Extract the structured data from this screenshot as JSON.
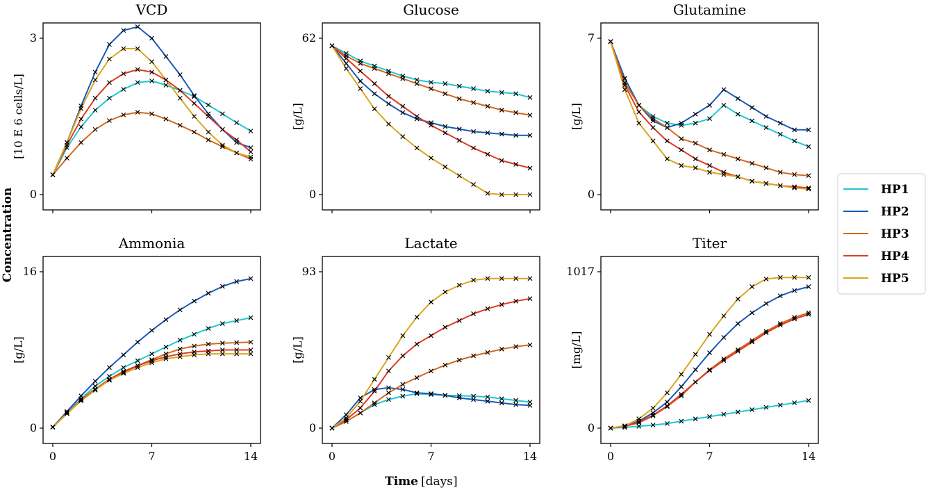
{
  "figure": {
    "shared_ylabel": "Concentration",
    "shared_xlabel_bold": "Time",
    "shared_xlabel_unit": "[days]"
  },
  "legend": {
    "placement": "right",
    "entries": [
      {
        "name": "HP1",
        "color": "#1ec8d2"
      },
      {
        "name": "HP2",
        "color": "#1a5ab8"
      },
      {
        "name": "HP3",
        "color": "#d2691e"
      },
      {
        "name": "HP4",
        "color": "#e03a24"
      },
      {
        "name": "HP5",
        "color": "#d9a61e"
      }
    ]
  },
  "chart_data": [
    {
      "type": "line",
      "title": "VCD",
      "ylabel": "[10 E 6 cells/L]",
      "xlim": [
        0,
        14
      ],
      "ylim": [
        0,
        3
      ],
      "xticks": [
        0,
        7,
        14
      ],
      "yticks": [
        0,
        3
      ],
      "marker": "x",
      "x": [
        0,
        1,
        2,
        3,
        4,
        5,
        6,
        7,
        8,
        9,
        10,
        11,
        12,
        13,
        14
      ],
      "series": [
        {
          "name": "HP1",
          "values": [
            0.38,
            0.9,
            1.3,
            1.62,
            1.85,
            2.02,
            2.15,
            2.18,
            2.1,
            2.0,
            1.88,
            1.72,
            1.55,
            1.38,
            1.22
          ]
        },
        {
          "name": "HP2",
          "values": [
            0.38,
            1.0,
            1.7,
            2.35,
            2.88,
            3.15,
            3.22,
            3.0,
            2.65,
            2.3,
            1.9,
            1.55,
            1.25,
            1.0,
            0.9
          ]
        },
        {
          "name": "HP3",
          "values": [
            0.38,
            0.7,
            1.0,
            1.25,
            1.42,
            1.53,
            1.58,
            1.55,
            1.45,
            1.33,
            1.2,
            1.05,
            0.92,
            0.8,
            0.68
          ]
        },
        {
          "name": "HP4",
          "values": [
            0.38,
            0.95,
            1.45,
            1.85,
            2.15,
            2.32,
            2.4,
            2.35,
            2.2,
            2.0,
            1.75,
            1.5,
            1.25,
            1.05,
            0.82
          ]
        },
        {
          "name": "HP5",
          "values": [
            0.38,
            1.0,
            1.65,
            2.2,
            2.6,
            2.8,
            2.8,
            2.55,
            2.2,
            1.85,
            1.5,
            1.2,
            0.95,
            0.8,
            0.72
          ]
        }
      ]
    },
    {
      "type": "line",
      "title": "Glucose",
      "ylabel": "[g/L]",
      "xlim": [
        0,
        14
      ],
      "ylim": [
        0,
        62
      ],
      "xticks": [
        0,
        7,
        14
      ],
      "yticks": [
        0,
        62
      ],
      "marker": "x",
      "x": [
        0,
        1,
        2,
        3,
        4,
        5,
        6,
        7,
        8,
        9,
        10,
        11,
        12,
        13,
        14
      ],
      "series": [
        {
          "name": "HP1",
          "values": [
            59,
            56,
            53,
            51,
            49,
            47,
            45.5,
            44.5,
            44,
            43,
            42,
            41,
            40.5,
            40,
            38.5
          ]
        },
        {
          "name": "HP2",
          "values": [
            59,
            52,
            45,
            40,
            36,
            32.5,
            30,
            28.5,
            27,
            26,
            25,
            24.5,
            24,
            23.5,
            23.5
          ]
        },
        {
          "name": "HP3",
          "values": [
            59,
            55,
            52,
            50,
            48,
            46,
            44,
            42,
            40,
            38,
            36.5,
            35,
            33.5,
            32.5,
            31.5
          ]
        },
        {
          "name": "HP4",
          "values": [
            59,
            54,
            49,
            44,
            39,
            35,
            31,
            27.5,
            24.5,
            21.5,
            18.5,
            16,
            13.5,
            12,
            10.5
          ]
        },
        {
          "name": "HP5",
          "values": [
            59,
            50,
            42,
            34,
            28,
            23,
            18.5,
            14.5,
            11,
            7.5,
            4,
            0.5,
            0,
            0,
            0
          ]
        }
      ]
    },
    {
      "type": "line",
      "title": "Glutamine",
      "ylabel": "[g/L]",
      "xlim": [
        0,
        14
      ],
      "ylim": [
        0,
        7
      ],
      "xticks": [
        0,
        7,
        14
      ],
      "yticks": [
        0,
        7
      ],
      "marker": "x",
      "x": [
        0,
        1,
        2,
        3,
        4,
        5,
        6,
        7,
        8,
        9,
        10,
        11,
        12,
        13,
        14
      ],
      "series": [
        {
          "name": "HP1",
          "values": [
            6.85,
            5.2,
            4.0,
            3.5,
            3.2,
            3.1,
            3.2,
            3.4,
            4.0,
            3.6,
            3.3,
            3.0,
            2.7,
            2.4,
            2.15
          ]
        },
        {
          "name": "HP2",
          "values": [
            6.85,
            5.2,
            4.0,
            3.3,
            3.0,
            3.2,
            3.6,
            4.0,
            4.7,
            4.3,
            3.9,
            3.5,
            3.2,
            2.9,
            2.9
          ]
        },
        {
          "name": "HP3",
          "values": [
            6.85,
            5.0,
            4.0,
            3.4,
            3.0,
            2.5,
            2.3,
            2.0,
            1.8,
            1.6,
            1.4,
            1.2,
            1.0,
            0.9,
            0.85
          ]
        },
        {
          "name": "HP4",
          "values": [
            6.85,
            4.9,
            3.7,
            3.0,
            2.4,
            2.0,
            1.6,
            1.3,
            1.0,
            0.8,
            0.6,
            0.5,
            0.4,
            0.35,
            0.3
          ]
        },
        {
          "name": "HP5",
          "values": [
            6.85,
            4.7,
            3.2,
            2.4,
            1.6,
            1.3,
            1.2,
            1.0,
            0.9,
            0.8,
            0.6,
            0.5,
            0.4,
            0.3,
            0.25
          ]
        }
      ]
    },
    {
      "type": "line",
      "title": "Ammonia",
      "ylabel": "[g/L]",
      "xlim": [
        0,
        14
      ],
      "ylim": [
        0,
        16
      ],
      "xticks": [
        0,
        7,
        14
      ],
      "yticks": [
        0,
        16
      ],
      "marker": "x",
      "x": [
        0,
        1,
        2,
        3,
        4,
        5,
        6,
        7,
        8,
        9,
        10,
        11,
        12,
        13,
        14
      ],
      "series": [
        {
          "name": "HP1",
          "values": [
            0.1,
            1.6,
            3.0,
            4.3,
            5.3,
            6.2,
            6.9,
            7.6,
            8.3,
            9.0,
            9.6,
            10.2,
            10.7,
            11.0,
            11.3
          ]
        },
        {
          "name": "HP2",
          "values": [
            0.1,
            1.7,
            3.3,
            4.8,
            6.2,
            7.5,
            8.8,
            10.0,
            11.1,
            12.1,
            13.0,
            13.8,
            14.5,
            15.0,
            15.3
          ]
        },
        {
          "name": "HP3",
          "values": [
            0.1,
            1.5,
            2.8,
            3.9,
            4.9,
            5.7,
            6.4,
            7.0,
            7.6,
            8.1,
            8.4,
            8.6,
            8.7,
            8.75,
            8.8
          ]
        },
        {
          "name": "HP4",
          "values": [
            0.1,
            1.5,
            2.9,
            4.0,
            5.0,
            5.8,
            6.4,
            6.9,
            7.3,
            7.6,
            7.8,
            7.9,
            8.0,
            8.0,
            8.0
          ]
        },
        {
          "name": "HP5",
          "values": [
            0.1,
            1.5,
            2.8,
            3.9,
            4.9,
            5.6,
            6.2,
            6.7,
            7.1,
            7.3,
            7.5,
            7.6,
            7.6,
            7.6,
            7.6
          ]
        }
      ]
    },
    {
      "type": "line",
      "title": "Lactate",
      "ylabel": "[g/L]",
      "xlim": [
        0,
        14
      ],
      "ylim": [
        0,
        93
      ],
      "xticks": [
        0,
        7,
        14
      ],
      "yticks": [
        0,
        93
      ],
      "marker": "x",
      "x": [
        0,
        1,
        2,
        3,
        4,
        5,
        6,
        7,
        8,
        9,
        10,
        11,
        12,
        13,
        14
      ],
      "series": [
        {
          "name": "HP1",
          "values": [
            0,
            4,
            9,
            14,
            17,
            19,
            20.5,
            20,
            19.5,
            19.3,
            19,
            18.5,
            17.5,
            16.5,
            15.5
          ]
        },
        {
          "name": "HP2",
          "values": [
            0,
            8,
            18,
            23,
            24,
            23,
            21,
            20.5,
            19.5,
            18,
            17,
            16,
            15,
            14,
            13.5
          ]
        },
        {
          "name": "HP3",
          "values": [
            0,
            4,
            9,
            15,
            21,
            26,
            30,
            34,
            37.5,
            40.5,
            43,
            45,
            47,
            48.5,
            49.5
          ]
        },
        {
          "name": "HP4",
          "values": [
            0,
            5,
            12,
            22,
            34,
            43,
            50,
            55,
            60,
            64,
            68,
            71,
            73.5,
            75.5,
            77
          ]
        },
        {
          "name": "HP5",
          "values": [
            0,
            6,
            16,
            29,
            42,
            55,
            66,
            75,
            81,
            85,
            88,
            89,
            89,
            89,
            89
          ]
        }
      ]
    },
    {
      "type": "line",
      "title": "Titer",
      "ylabel": "[mg/L]",
      "xlim": [
        0,
        14
      ],
      "ylim": [
        0,
        1017
      ],
      "xticks": [
        0,
        7,
        14
      ],
      "yticks": [
        0,
        1017
      ],
      "marker": "x",
      "x": [
        0,
        1,
        2,
        3,
        4,
        5,
        6,
        7,
        8,
        9,
        10,
        11,
        12,
        13,
        14
      ],
      "series": [
        {
          "name": "HP1",
          "values": [
            0,
            5,
            12,
            20,
            30,
            45,
            60,
            75,
            90,
            105,
            120,
            135,
            150,
            165,
            180
          ]
        },
        {
          "name": "HP2",
          "values": [
            0,
            15,
            45,
            100,
            170,
            270,
            380,
            490,
            590,
            680,
            750,
            810,
            860,
            895,
            920
          ]
        },
        {
          "name": "HP3",
          "values": [
            0,
            12,
            35,
            80,
            140,
            210,
            300,
            380,
            450,
            510,
            570,
            630,
            680,
            720,
            750
          ]
        },
        {
          "name": "HP4",
          "values": [
            0,
            12,
            38,
            85,
            145,
            220,
            300,
            375,
            440,
            500,
            560,
            620,
            670,
            710,
            740
          ]
        },
        {
          "name": "HP5",
          "values": [
            0,
            15,
            60,
            130,
            230,
            350,
            480,
            610,
            730,
            840,
            920,
            970,
            980,
            980,
            980
          ]
        }
      ]
    }
  ]
}
